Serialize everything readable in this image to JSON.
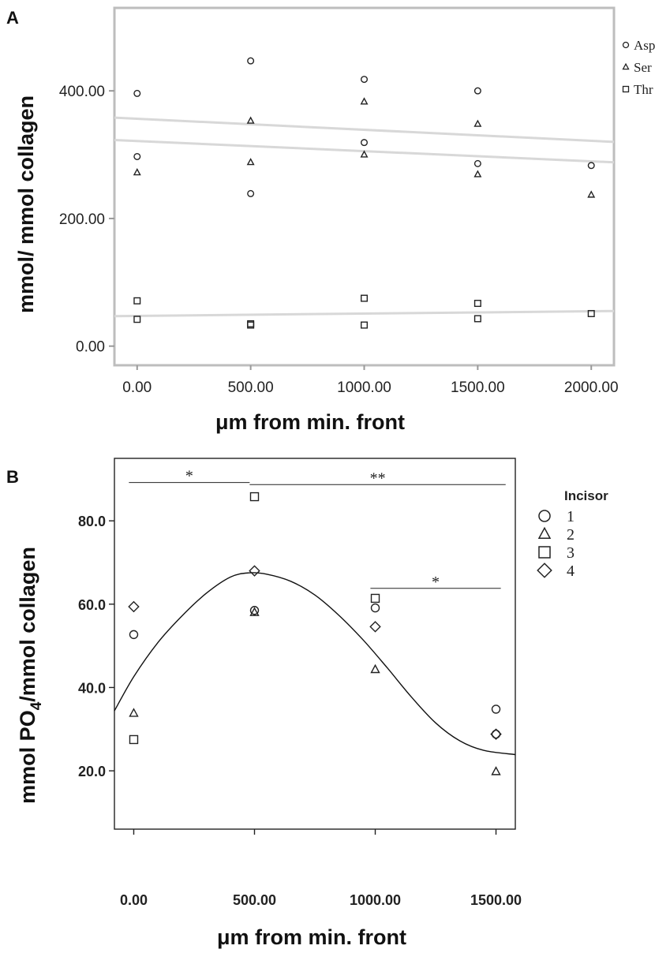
{
  "chart_data": [
    {
      "panel": "A",
      "type": "scatter",
      "xlabel": "μm from min. front",
      "ylabel": "mmol/ mmol collagen",
      "x_ticks": [
        "0.00",
        "500.00",
        "1000.00",
        "1500.00",
        "2000.00"
      ],
      "y_ticks": [
        "0.00",
        "200.00",
        "400.00"
      ],
      "xlim": [
        -100,
        2100
      ],
      "ylim": [
        -30,
        530
      ],
      "grid": false,
      "legend_position": "top-right, outside",
      "series": [
        {
          "name": "Asp",
          "marker": "circle",
          "points": [
            [
              0,
              396
            ],
            [
              0,
              297
            ],
            [
              500,
              447
            ],
            [
              500,
              239
            ],
            [
              1000,
              418
            ],
            [
              1000,
              319
            ],
            [
              1500,
              400
            ],
            [
              1500,
              286
            ],
            [
              2000,
              283
            ]
          ],
          "fit": [
            [
              -100,
              358
            ],
            [
              2100,
              320
            ]
          ]
        },
        {
          "name": "Ser",
          "marker": "triangle",
          "points": [
            [
              0,
              272
            ],
            [
              500,
              288
            ],
            [
              500,
              353
            ],
            [
              1000,
              383
            ],
            [
              1000,
              300
            ],
            [
              1500,
              348
            ],
            [
              1500,
              269
            ],
            [
              2000,
              237
            ]
          ],
          "fit": [
            [
              -100,
              323
            ],
            [
              2100,
              288
            ]
          ]
        },
        {
          "name": "Thr",
          "marker": "square",
          "points": [
            [
              0,
              71
            ],
            [
              0,
              42
            ],
            [
              500,
              35
            ],
            [
              500,
              33
            ],
            [
              1000,
              75
            ],
            [
              1000,
              33
            ],
            [
              1500,
              67
            ],
            [
              1500,
              43
            ],
            [
              2000,
              51
            ]
          ],
          "fit": [
            [
              -100,
              47
            ],
            [
              2100,
              55
            ]
          ]
        }
      ]
    },
    {
      "panel": "B",
      "type": "scatter",
      "xlabel": "μm from min. front",
      "ylabel": "mmol PO4/mmol collagen",
      "ylabel_main": "mmol PO",
      "ylabel_sub": "4",
      "ylabel_rest": "/mmol collagen",
      "x_ticks": [
        "0.00",
        "500.00",
        "1000.00",
        "1500.00"
      ],
      "y_ticks": [
        "20.0",
        "40.0",
        "60.0",
        "80.0"
      ],
      "xlim": [
        -80,
        1580
      ],
      "ylim": [
        6,
        95
      ],
      "grid": false,
      "legend_title": "Incisor",
      "legend_position": "top-right, outside",
      "series": [
        {
          "name": "1",
          "marker": "circle",
          "points": [
            [
              0,
              52.7
            ],
            [
              500,
              58.5
            ],
            [
              1000,
              59.1
            ],
            [
              1500,
              34.8
            ],
            [
              1500,
              28.8
            ]
          ]
        },
        {
          "name": "2",
          "marker": "triangle",
          "points": [
            [
              0,
              33.8
            ],
            [
              500,
              58.0
            ],
            [
              1000,
              44.3
            ],
            [
              1500,
              19.8
            ]
          ]
        },
        {
          "name": "3",
          "marker": "square",
          "points": [
            [
              0,
              27.5
            ],
            [
              500,
              85.8
            ],
            [
              1000,
              61.4
            ]
          ]
        },
        {
          "name": "4",
          "marker": "diamond",
          "points": [
            [
              0,
              59.4
            ],
            [
              500,
              68.0
            ],
            [
              1000,
              54.6
            ],
            [
              1500,
              28.8
            ]
          ]
        }
      ],
      "fit_curve": "quadratic",
      "fit_peak": [
        475,
        67.5
      ],
      "fit_points": [
        [
          -80,
          34.4
        ],
        [
          0,
          42.6
        ],
        [
          100,
          50.8
        ],
        [
          200,
          57.2
        ],
        [
          300,
          62.6
        ],
        [
          400,
          66.5
        ],
        [
          475,
          67.5
        ],
        [
          550,
          67.2
        ],
        [
          650,
          65.5
        ],
        [
          750,
          62.2
        ],
        [
          850,
          57.3
        ],
        [
          950,
          51.4
        ],
        [
          1050,
          44.7
        ],
        [
          1150,
          37.7
        ],
        [
          1250,
          31.5
        ],
        [
          1350,
          27.2
        ],
        [
          1450,
          24.9
        ],
        [
          1580,
          23.9
        ]
      ],
      "significance": [
        {
          "label": "*",
          "x_range": [
            -20,
            480
          ],
          "y": 89.2
        },
        {
          "label": "**",
          "x_range": [
            480,
            1540
          ],
          "y": 88.7
        },
        {
          "label": "*",
          "x_range": [
            980,
            1520
          ],
          "y": 63.8
        }
      ]
    }
  ],
  "colors": {
    "marker": "#222222",
    "fit_line_a": "#d8d8d8",
    "fit_line_b": "#111111",
    "frame_a": "#bdbdbd",
    "frame_b": "#222222"
  }
}
